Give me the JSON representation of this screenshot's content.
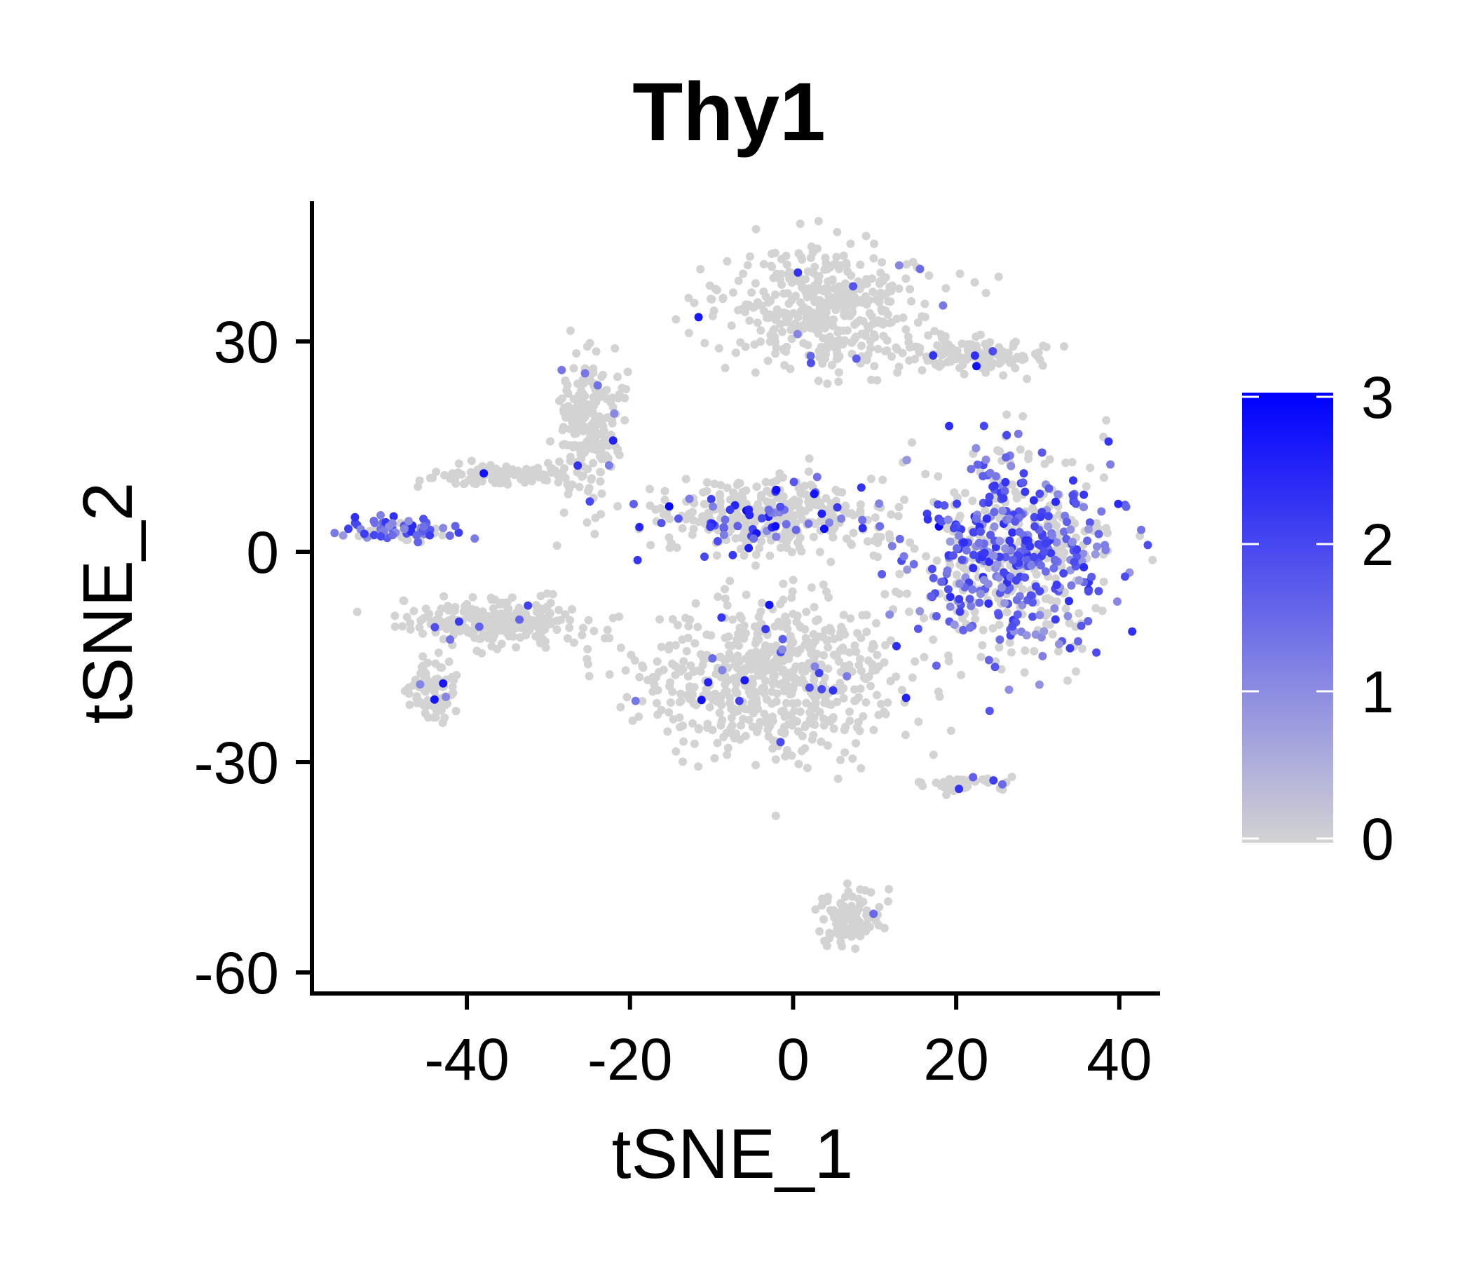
{
  "chart_data": {
    "type": "scatter",
    "title": "Thy1",
    "xlabel": "tSNE_1",
    "ylabel": "tSNE_2",
    "xlim": [
      -59,
      45
    ],
    "ylim": [
      -63,
      50
    ],
    "xticks": [
      -40,
      -20,
      0,
      20,
      40
    ],
    "yticks": [
      30,
      0,
      -30,
      -60
    ],
    "grid": false,
    "legend": {
      "type": "colorbar",
      "placement": "right",
      "range": [
        0,
        3
      ],
      "ticks": [
        0,
        1,
        2,
        3
      ],
      "low_color": "#d3d3d3",
      "high_color": "#0000ff"
    },
    "clusters": [
      {
        "cx": 4,
        "cy": 35,
        "rx": 13,
        "ry": 9,
        "count": 420,
        "expr": "low"
      },
      {
        "cx": 22,
        "cy": 28,
        "rx": 9,
        "ry": 2.5,
        "count": 120,
        "expr": "low"
      },
      {
        "cx": -25,
        "cy": 18,
        "rx": 4,
        "ry": 10,
        "count": 220,
        "expr": "low"
      },
      {
        "cx": -3,
        "cy": 5,
        "rx": 15,
        "ry": 5,
        "count": 380,
        "expr": "mixed"
      },
      {
        "cx": 27,
        "cy": 0,
        "rx": 12,
        "ry": 14,
        "count": 650,
        "expr": "high"
      },
      {
        "cx": -3,
        "cy": -18,
        "rx": 16,
        "ry": 11,
        "count": 620,
        "expr": "low"
      },
      {
        "cx": -36,
        "cy": -10,
        "rx": 12,
        "ry": 3,
        "count": 260,
        "expr": "low"
      },
      {
        "cx": -44,
        "cy": -20,
        "rx": 3,
        "ry": 4,
        "count": 90,
        "expr": "low"
      },
      {
        "cx": -48,
        "cy": 3,
        "rx": 7,
        "ry": 1.6,
        "count": 90,
        "expr": "high"
      },
      {
        "cx": -35,
        "cy": 11,
        "rx": 8,
        "ry": 1.4,
        "count": 110,
        "expr": "low"
      },
      {
        "cx": 21,
        "cy": -33,
        "rx": 5,
        "ry": 1.2,
        "count": 50,
        "expr": "low"
      },
      {
        "cx": 7,
        "cy": -52,
        "rx": 4,
        "ry": 4,
        "count": 90,
        "expr": "low"
      }
    ]
  }
}
